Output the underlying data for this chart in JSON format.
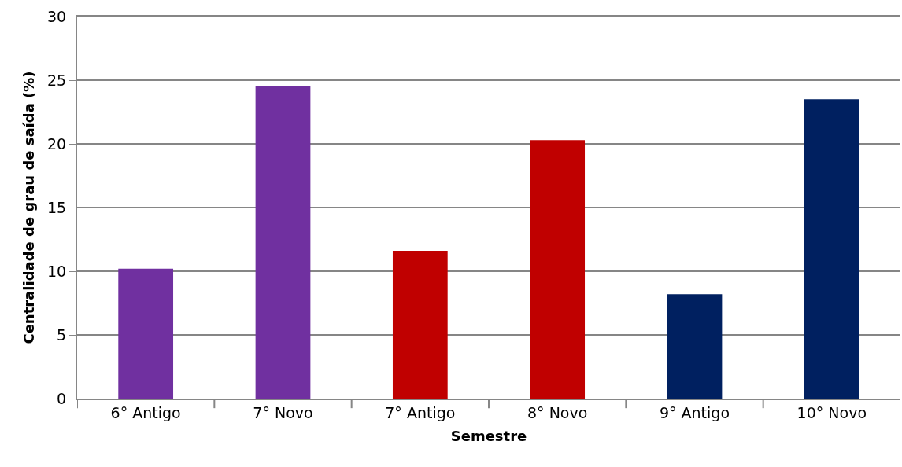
{
  "chart_data": {
    "type": "bar",
    "xlabel": "Semestre",
    "ylabel": "Centralidade de grau de saída (%)",
    "categories": [
      "6° Antigo",
      "7° Novo",
      "7° Antigo",
      "8° Novo",
      "9° Antigo",
      "10° Novo"
    ],
    "values": [
      10.2,
      24.5,
      11.6,
      20.3,
      8.2,
      23.5
    ],
    "colors": [
      "#7030a0",
      "#7030a0",
      "#c00000",
      "#c00000",
      "#002060",
      "#002060"
    ],
    "ylim": [
      0,
      30
    ],
    "yticks": [
      0,
      5,
      10,
      15,
      20,
      25,
      30
    ],
    "grid": "y"
  }
}
